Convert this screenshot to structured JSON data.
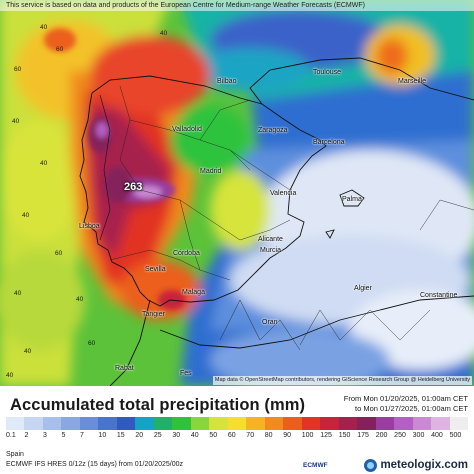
{
  "attribution": "This service is based on data and products of the European Centre for Medium-range Weather Forecasts (ECMWF)",
  "map_credit": "Map data © OpenStreetMap contributors, rendering GIScience Research Group @ Heidelberg University",
  "max_value": "263",
  "cities": {
    "toulouse": "Toulouse",
    "marseille": "Marseille",
    "bilbao": "Bilbao",
    "valladolid": "Valladolid",
    "zaragoza": "Zaragoza",
    "barcelona": "Barcelona",
    "madrid": "Madrid",
    "valencia": "Valencia",
    "palma": "Palma",
    "lisboa": "Lisboa",
    "sevilla": "Sevilla",
    "cordoba": "Córdoba",
    "alicante": "Alicante",
    "murcia": "Murcia",
    "malaga": "Malaga",
    "algier": "Algier",
    "constantine": "Constantine",
    "oran": "Oran",
    "tangier": "Tangier",
    "rabat": "Rabat",
    "fes": "Fes"
  },
  "map_labels": [
    "60",
    "40",
    "40",
    "40",
    "60",
    "40",
    "40",
    "40",
    "40",
    "60",
    "60",
    "40",
    "40"
  ],
  "title": "Accumulated total precipitation (mm)",
  "period": {
    "from": "From Mon 01/20/2025, 01:00am CET",
    "to": "to Mon 01/27/2025, 01:00am CET"
  },
  "scale": {
    "ticks": [
      "0.1",
      "2",
      "3",
      "5",
      "7",
      "10",
      "15",
      "20",
      "25",
      "30",
      "40",
      "50",
      "60",
      "70",
      "80",
      "90",
      "100",
      "125",
      "150",
      "175",
      "200",
      "250",
      "300",
      "400",
      "500"
    ],
    "colors": [
      "#dfe9f7",
      "#c6d5f0",
      "#a8bfea",
      "#8aa7e2",
      "#6a8cd9",
      "#4a73cc",
      "#2f5bc0",
      "#12a4c2",
      "#1fb06a",
      "#2fc33c",
      "#88d63a",
      "#d6e43a",
      "#f6df2c",
      "#f6b324",
      "#f28a1d",
      "#ec5f1b",
      "#e23324",
      "#c8223c",
      "#a6204e",
      "#84205c",
      "#9a3ca0",
      "#b45fc4",
      "#c98ad2",
      "#ddb5e0",
      "#eeeeee"
    ]
  },
  "footer": {
    "region": "Spain",
    "model": "ECMWF IFS HRES 0/12z (15 days) from 01/20/2025/00z",
    "ecmwf": "ECMWF",
    "brand": "meteologix.com"
  }
}
